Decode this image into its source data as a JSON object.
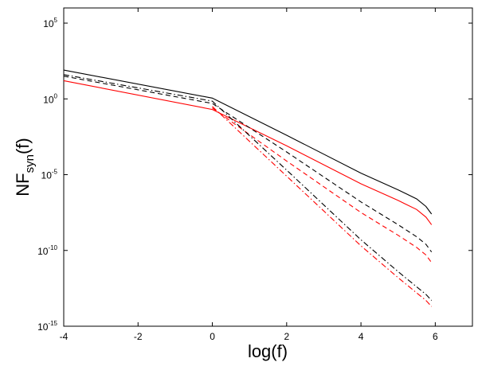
{
  "chart_data": {
    "type": "line",
    "xlabel": "log(f)",
    "ylabel": {
      "main": "NF",
      "sub": "syn",
      "suffix": "(f)"
    },
    "xlim": [
      -4,
      7
    ],
    "ylim_log10": [
      -15,
      6
    ],
    "yscale": "log",
    "grid": false,
    "legend": null,
    "x_ticks": [
      "-4",
      "-2",
      "0",
      "2",
      "4",
      "6"
    ],
    "x_tick_values": [
      -4,
      -2,
      0,
      2,
      4,
      6
    ],
    "y_ticks": [
      {
        "base": "10",
        "exp": "5",
        "value_log10": 5
      },
      {
        "base": "10",
        "exp": "0",
        "value_log10": 0
      },
      {
        "base": "10",
        "exp": "-5",
        "value_log10": -5
      },
      {
        "base": "10",
        "exp": "-10",
        "value_log10": -10
      },
      {
        "base": "10",
        "exp": "-15",
        "value_log10": -15
      }
    ],
    "series": [
      {
        "color": "#000000",
        "style": "solid",
        "x": [
          -4,
          0,
          2,
          4,
          5,
          5.5,
          5.75,
          5.9
        ],
        "y_log10": [
          1.9,
          0.05,
          -2.4,
          -4.9,
          -6.0,
          -6.6,
          -7.1,
          -7.6
        ]
      },
      {
        "color": "#ff0000",
        "style": "solid",
        "x": [
          -4,
          0,
          2,
          4,
          5,
          5.5,
          5.75,
          5.9
        ],
        "y_log10": [
          1.2,
          -0.7,
          -3.1,
          -5.6,
          -6.7,
          -7.3,
          -7.8,
          -8.3
        ]
      },
      {
        "color": "#000000",
        "style": "dashed",
        "x": [
          -4,
          0,
          2,
          4,
          5,
          5.5,
          5.75,
          5.9
        ],
        "y_log10": [
          1.5,
          -0.3,
          -3.5,
          -6.8,
          -8.3,
          -9.1,
          -9.6,
          -10.1
        ]
      },
      {
        "color": "#ff0000",
        "style": "dashed",
        "x": [
          0,
          2,
          4,
          5,
          5.5,
          5.75,
          5.9
        ],
        "y_log10": [
          -0.6,
          -4.1,
          -7.5,
          -9.0,
          -9.8,
          -10.3,
          -10.8
        ]
      },
      {
        "color": "#000000",
        "style": "dashdot",
        "x": [
          -4,
          0,
          2,
          4,
          5,
          5.5,
          5.75,
          5.9
        ],
        "y_log10": [
          1.6,
          -0.15,
          -4.7,
          -9.3,
          -11.4,
          -12.4,
          -12.9,
          -13.3
        ]
      },
      {
        "color": "#ff0000",
        "style": "dashdot",
        "x": [
          0,
          2,
          4,
          5,
          5.5,
          5.75,
          5.9
        ],
        "y_log10": [
          -0.5,
          -5.1,
          -9.7,
          -11.8,
          -12.8,
          -13.3,
          -13.7
        ]
      }
    ]
  }
}
